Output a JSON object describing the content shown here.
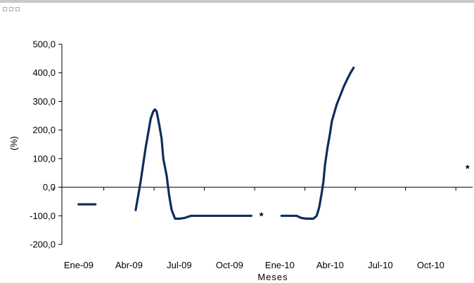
{
  "chart_data": {
    "type": "line",
    "title": "",
    "xlabel": "Meses",
    "ylabel": "(%)",
    "ylim": [
      -200,
      500
    ],
    "yticks": [
      -200,
      -100,
      0,
      100,
      200,
      300,
      400,
      500
    ],
    "ytick_labels": [
      "-200,0",
      "-100,0",
      "0,0",
      "100,0",
      "200,0",
      "300,0",
      "400,0",
      "500,0"
    ],
    "x_unit": "months from Jan 2009",
    "xticks": [
      0,
      3,
      6,
      9,
      12,
      15,
      18,
      21
    ],
    "xtick_labels": [
      "Ene-09",
      "Abr-09",
      "Jul-09",
      "Oct-09",
      "Ene-10",
      "Abr-10",
      "Jul-10",
      "Oct-10"
    ],
    "xlim": [
      -1,
      23.5
    ],
    "grid": false,
    "line_color": "#0d2d5e",
    "series": [
      {
        "segments": [
          [
            [
              0,
              -60
            ],
            [
              1.0,
              -60
            ]
          ],
          [
            [
              3.4,
              -80
            ],
            [
              3.55,
              -30
            ],
            [
              3.7,
              20
            ],
            [
              3.85,
              80
            ],
            [
              4.0,
              140
            ],
            [
              4.15,
              190
            ],
            [
              4.3,
              240
            ],
            [
              4.45,
              265
            ],
            [
              4.55,
              272
            ],
            [
              4.65,
              265
            ],
            [
              4.8,
              220
            ],
            [
              4.95,
              170
            ],
            [
              5.05,
              100
            ],
            [
              5.25,
              40
            ],
            [
              5.4,
              -30
            ],
            [
              5.55,
              -80
            ],
            [
              5.75,
              -110
            ],
            [
              6.0,
              -110
            ],
            [
              6.3,
              -108
            ],
            [
              6.7,
              -100
            ],
            [
              7.5,
              -100
            ],
            [
              8.5,
              -100
            ],
            [
              9.5,
              -100
            ],
            [
              10.3,
              -100
            ]
          ],
          [
            [
              12.1,
              -100
            ],
            [
              12.5,
              -100
            ],
            [
              13.0,
              -100
            ],
            [
              13.3,
              -108
            ],
            [
              13.6,
              -110
            ],
            [
              14.0,
              -110
            ],
            [
              14.2,
              -100
            ],
            [
              14.35,
              -70
            ],
            [
              14.5,
              -20
            ],
            [
              14.6,
              20
            ],
            [
              14.7,
              80
            ],
            [
              14.85,
              140
            ],
            [
              15.0,
              190
            ],
            [
              15.1,
              230
            ],
            [
              15.25,
              260
            ],
            [
              15.4,
              290
            ],
            [
              15.6,
              320
            ],
            [
              15.8,
              350
            ],
            [
              16.0,
              375
            ],
            [
              16.2,
              398
            ],
            [
              16.4,
              418
            ]
          ]
        ]
      }
    ],
    "annotations": [
      {
        "text": "*",
        "x": 10.9,
        "y": -100
      },
      {
        "text": "*",
        "x": 23.2,
        "y": 65
      }
    ]
  }
}
